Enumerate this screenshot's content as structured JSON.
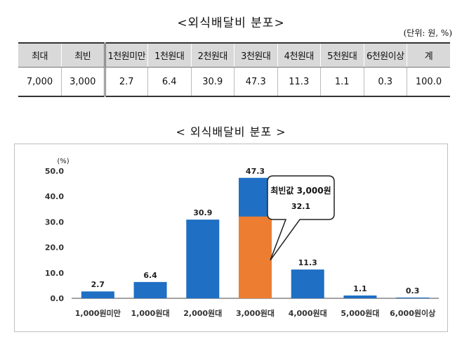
{
  "table": {
    "title": "<외식배달비 분포>",
    "unit": "(단위: 원, %)",
    "headers": [
      "최대",
      "최빈",
      "1천원미만",
      "1천원대",
      "2천원대",
      "3천원대",
      "4천원대",
      "5천원대",
      "6천원이상",
      "계"
    ],
    "values": [
      "7,000",
      "3,000",
      "2.7",
      "6.4",
      "30.9",
      "47.3",
      "11.3",
      "1.1",
      "0.3",
      "100.0"
    ]
  },
  "chart_data": {
    "type": "bar",
    "title": "< 외식배달비 분포 >",
    "ylabel": "(%)",
    "ylim": [
      0,
      50
    ],
    "yticks": [
      "0.0",
      "10.0",
      "20.0",
      "30.0",
      "40.0",
      "50.0"
    ],
    "grid": false,
    "categories": [
      "1,000원미만",
      "1,000원대",
      "2,000원대",
      "3,000원대",
      "4,000원대",
      "5,000원대",
      "6,000원이상"
    ],
    "values": [
      2.7,
      6.4,
      30.9,
      47.3,
      11.3,
      1.1,
      0.3
    ],
    "value_labels": [
      "2.7",
      "6.4",
      "30.9",
      "47.3",
      "11.3",
      "1.1",
      "0.3"
    ],
    "highlight": {
      "category": "3,000원대",
      "value": 32.1,
      "label_line1": "최빈값 3,000원",
      "label_line2": "32.1"
    },
    "colors": {
      "bar": "#1f6fc4",
      "highlight": "#ed7d31",
      "axis": "#444444"
    }
  }
}
